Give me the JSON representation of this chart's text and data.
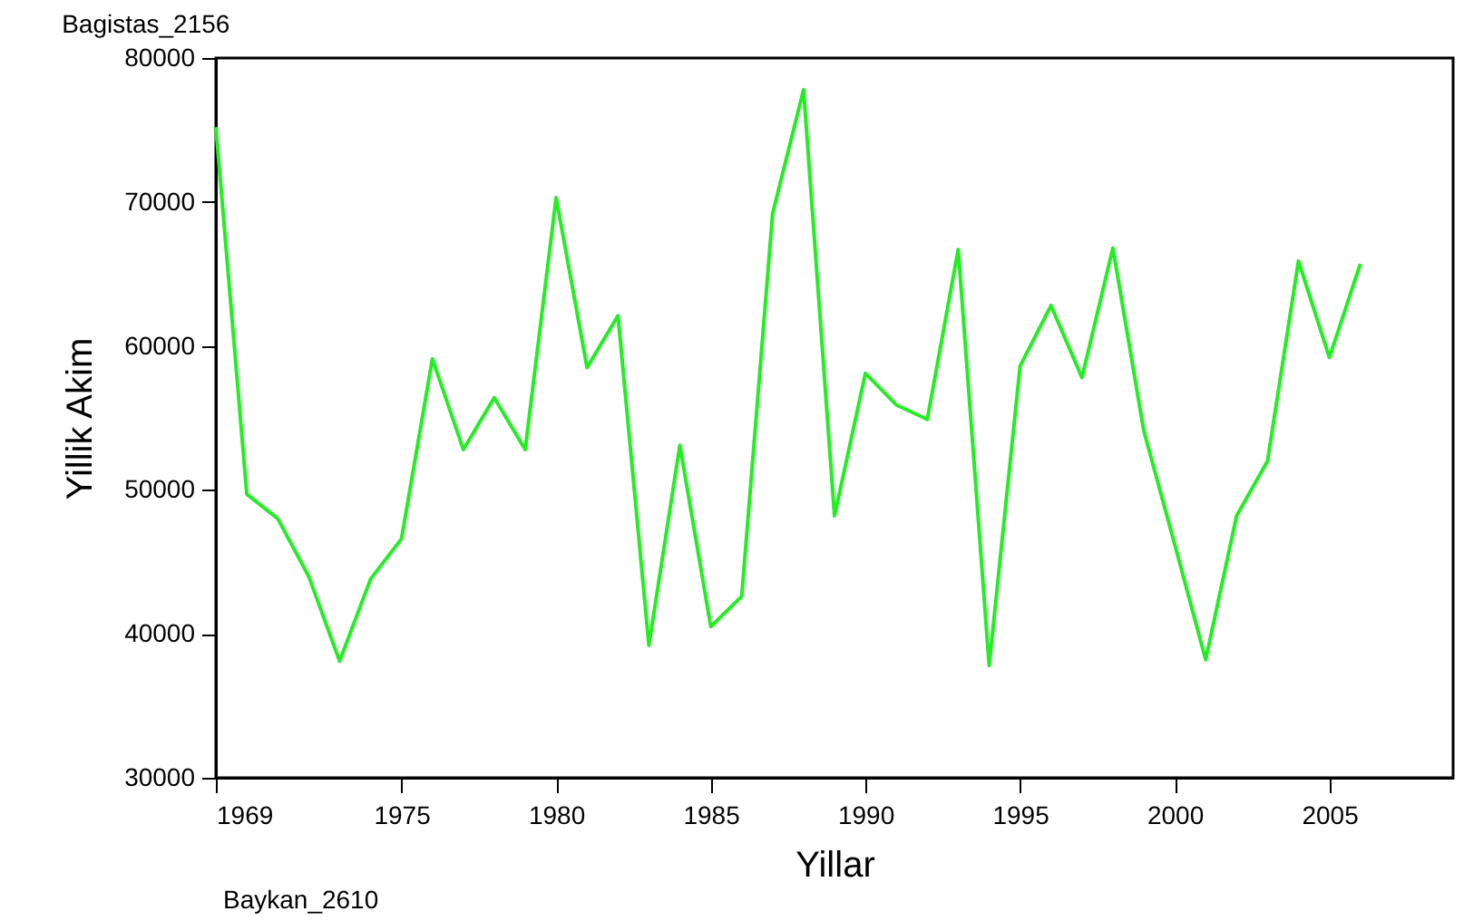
{
  "chart_data": {
    "type": "line",
    "title": "Bagistas_2156",
    "xlabel": "Yillar",
    "ylabel": "Yillik Akim",
    "annotations": [
      "Baykan_2610"
    ],
    "x": [
      1969,
      1970,
      1971,
      1972,
      1973,
      1974,
      1975,
      1976,
      1977,
      1978,
      1979,
      1980,
      1981,
      1982,
      1983,
      1984,
      1985,
      1986,
      1987,
      1988,
      1989,
      1990,
      1991,
      1992,
      1993,
      1994,
      1995,
      1996,
      1997,
      1998,
      1999,
      2000,
      2001,
      2002,
      2003,
      2004,
      2005,
      2006
    ],
    "series": [
      {
        "color": "#22ee22",
        "values": [
          75200,
          49700,
          48000,
          44000,
          38100,
          43800,
          46600,
          59100,
          52800,
          56400,
          52800,
          70300,
          58500,
          62100,
          39200,
          53100,
          40500,
          42600,
          69200,
          77800,
          48200,
          58100,
          55900,
          54900,
          66700,
          37800,
          58600,
          62800,
          57800,
          66800,
          54100,
          46200,
          38200,
          48200,
          52000,
          65900,
          59200,
          65700
        ]
      }
    ],
    "xlim": [
      1969,
      2009
    ],
    "xticks": [
      1969,
      1975,
      1980,
      1985,
      1990,
      1995,
      2000,
      2005
    ],
    "ylim": [
      30000,
      80000
    ],
    "yticks": [
      30000,
      40000,
      50000,
      60000,
      70000,
      80000
    ],
    "grid": false,
    "marker": "none",
    "line_style": "solid"
  }
}
